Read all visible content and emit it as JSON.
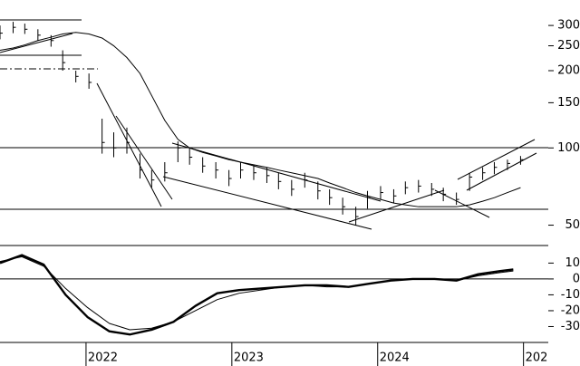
{
  "chart_data": [
    {
      "type": "ohlc",
      "log": true,
      "color": "#000000",
      "ma_color": "#000000",
      "x": [
        2021.41,
        2021.5,
        2021.58,
        2021.67,
        2021.76,
        2021.84,
        2021.93,
        2022.02,
        2022.11,
        2022.19,
        2022.28,
        2022.37,
        2022.45,
        2022.54,
        2022.63,
        2022.71,
        2022.8,
        2022.89,
        2022.98,
        2023.06,
        2023.15,
        2023.24,
        2023.32,
        2023.41,
        2023.5,
        2023.59,
        2023.67,
        2023.76,
        2023.85,
        2023.93,
        2024.02,
        2024.11,
        2024.19,
        2024.28,
        2024.37,
        2024.45,
        2024.54,
        2024.63,
        2024.72,
        2024.8,
        2024.89,
        2024.98
      ],
      "high": [
        300,
        310,
        305,
        290,
        275,
        240,
        200,
        195,
        130,
        115,
        120,
        95,
        82,
        88,
        106,
        100,
        92,
        88,
        82,
        88,
        86,
        84,
        80,
        75,
        80,
        74,
        69,
        64,
        59,
        68,
        71,
        69,
        74,
        75,
        73,
        70,
        67,
        80,
        84,
        88,
        90,
        93
      ],
      "low": [
        265,
        280,
        278,
        262,
        248,
        200,
        180,
        170,
        95,
        92,
        95,
        76,
        70,
        74,
        88,
        86,
        80,
        76,
        71,
        76,
        75,
        73,
        69,
        65,
        70,
        63,
        60,
        55,
        50,
        58,
        63,
        61,
        66,
        67,
        65,
        62,
        60,
        68,
        75,
        79,
        82,
        86
      ],
      "close": [
        280,
        295,
        290,
        275,
        262,
        215,
        190,
        180,
        105,
        100,
        105,
        82,
        75,
        80,
        100,
        92,
        85,
        82,
        76,
        82,
        80,
        78,
        74,
        69,
        75,
        68,
        64,
        59,
        54,
        64,
        67,
        65,
        70,
        71,
        69,
        66,
        63,
        77,
        80,
        84,
        87,
        90
      ],
      "ma": [
        240,
        245,
        252,
        262,
        270,
        278,
        282,
        278,
        268,
        250,
        225,
        195,
        160,
        128,
        108,
        100,
        96,
        93,
        90,
        88,
        86,
        84,
        82,
        80,
        78,
        76,
        73,
        70,
        67,
        65,
        63,
        61,
        60,
        59,
        59,
        59,
        59,
        60,
        62,
        64,
        67,
        70
      ],
      "ylim": [
        42,
        377
      ],
      "yticks": [
        50,
        100,
        150,
        200,
        250,
        300
      ],
      "xlim": [
        2021.41,
        2025.17
      ],
      "xticks": [
        2022,
        2023,
        2024,
        {
          "value": 2025,
          "label": "202"
        }
      ]
    },
    {
      "type": "line",
      "x": [
        2021.41,
        2021.56,
        2021.71,
        2021.86,
        2022.01,
        2022.16,
        2022.3,
        2022.45,
        2022.6,
        2022.75,
        2022.9,
        2023.05,
        2023.2,
        2023.35,
        2023.5,
        2023.65,
        2023.8,
        2023.94,
        2024.09,
        2024.24,
        2024.39,
        2024.54,
        2024.69,
        2024.84,
        2024.93
      ],
      "series": [
        {
          "color": "#000000",
          "width": 2.4,
          "values": [
            10,
            15,
            9,
            -10,
            -24,
            -33,
            -35,
            -32,
            -27,
            -17,
            -9,
            -7,
            -6,
            -5,
            -4,
            -4,
            -5,
            -3,
            -1,
            0,
            0,
            -1,
            3,
            5,
            6
          ]
        },
        {
          "color": "#000000",
          "width": 1,
          "values": [
            11,
            14,
            8,
            -6,
            -18,
            -28,
            -32,
            -31,
            -27,
            -20,
            -13,
            -9,
            -7,
            -5,
            -4,
            -5,
            -5,
            -3,
            -1,
            0,
            0,
            -1,
            2,
            4,
            5
          ]
        }
      ],
      "ylim": [
        -40,
        20.5
      ],
      "yticks": [
        10,
        0,
        -10,
        -20,
        -30
      ],
      "zero_line": true
    }
  ]
}
